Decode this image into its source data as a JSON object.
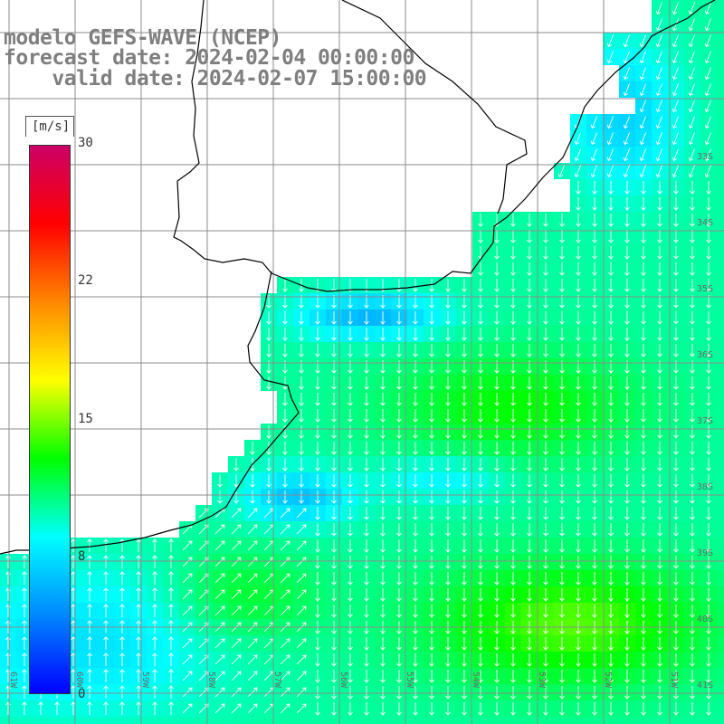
{
  "header": {
    "model": "modelo GEFS-WAVE (NCEP)",
    "forecast": "forecast date: 2024-02-04 00:00:00",
    "valid": "valid date: 2024-02-07 15:00:00"
  },
  "colorbar": {
    "unit": "[m/s]",
    "min": 0,
    "max": 30,
    "ticks": [
      "30",
      "22",
      "15",
      "8",
      "0"
    ],
    "tick_values": [
      30,
      22,
      15,
      8,
      0
    ],
    "colors": [
      "#0000ff",
      "#0088ff",
      "#00ffff",
      "#00ff00",
      "#ffff00",
      "#ff8800",
      "#ff0000",
      "#cc0066"
    ]
  },
  "axes": {
    "lon_labels": [
      "61W",
      "60W",
      "59W",
      "58W",
      "57W",
      "56W",
      "55W",
      "54W",
      "53W",
      "52W",
      "51W"
    ],
    "lat_labels": [
      "33S",
      "34S",
      "35S",
      "36S",
      "37S",
      "38S",
      "39S",
      "40S",
      "41S"
    ]
  },
  "colors": {
    "land": "#ffffff",
    "grid": "#8c8c8c",
    "coast": "#000000",
    "arrow": "#ffffff",
    "text": "#7f7f7f"
  }
}
